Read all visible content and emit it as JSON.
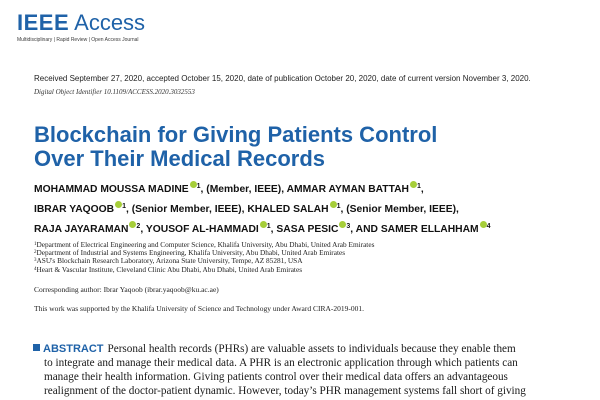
{
  "journal": {
    "name_bold": "IEEE",
    "name_light": "Access",
    "tagline": "Multidisciplinary | Rapid Review | Open Access Journal"
  },
  "received": "Received September 27, 2020, accepted October 15, 2020, date of publication October 20, 2020, date of current version November 3, 2020.",
  "doi": "Digital Object Identifier 10.1109/ACCESS.2020.3032553",
  "title_lines": [
    "Blockchain for Giving Patients Control",
    "Over Their Medical Records"
  ],
  "authors": [
    {
      "name": "MOHAMMAD MOUSSA MADINE",
      "sup": "1",
      "note": ", (Member, IEEE), "
    },
    {
      "name": "AMMAR AYMAN BATTAH",
      "sup": "1",
      "note": ","
    },
    {
      "name": "IBRAR YAQOOB",
      "sup": "1",
      "note": ", (Senior Member, IEEE), "
    },
    {
      "name": "KHALED SALAH",
      "sup": "1",
      "note": ", (Senior Member, IEEE),"
    },
    {
      "name": "RAJA JAYARAMAN",
      "sup": "2",
      "note": ", "
    },
    {
      "name": "YOUSOF AL-HAMMADI",
      "sup": "1",
      "note": ", "
    },
    {
      "name": "SASA PESIC",
      "sup": "3",
      "note": ", AND "
    },
    {
      "name": "SAMER ELLAHHAM",
      "sup": "4",
      "note": ""
    }
  ],
  "affiliations": [
    {
      "n": "1",
      "text": "Department of Electrical Engineering and Computer Science, Khalifa University, Abu Dhabi, United Arab Emirates"
    },
    {
      "n": "2",
      "text": "Department of Industrial and Systems Engineering, Khalifa University, Abu Dhabi, United Arab Emirates"
    },
    {
      "n": "3",
      "text": "ASU's Blockchain Research Laboratory, Arizona State University, Tempe, AZ 85281, USA"
    },
    {
      "n": "4",
      "text": "Heart & Vascular Institute, Cleveland Clinic Abu Dhabi, Abu Dhabi, United Arab Emirates"
    }
  ],
  "corresponding": "Corresponding author: Ibrar Yaqoob (ibrar.yaqoob@ku.ac.ae)",
  "funding": "This work was supported by the Khalifa University of Science and Technology under Award CIRA-2019-001.",
  "abstract": {
    "label": "ABSTRACT",
    "lines": [
      "Personal health records (PHRs) are valuable assets to individuals because they enable them",
      "to integrate and manage their medical data. A PHR is an electronic application through which patients can",
      "manage their health information. Giving patients control over their medical data offers an advantageous",
      "realignment of the doctor-patient dynamic. However, today’s PHR management systems fall short of giving"
    ]
  },
  "colors": {
    "accent": "#1f62a8",
    "orcid": "#a6ce39"
  }
}
